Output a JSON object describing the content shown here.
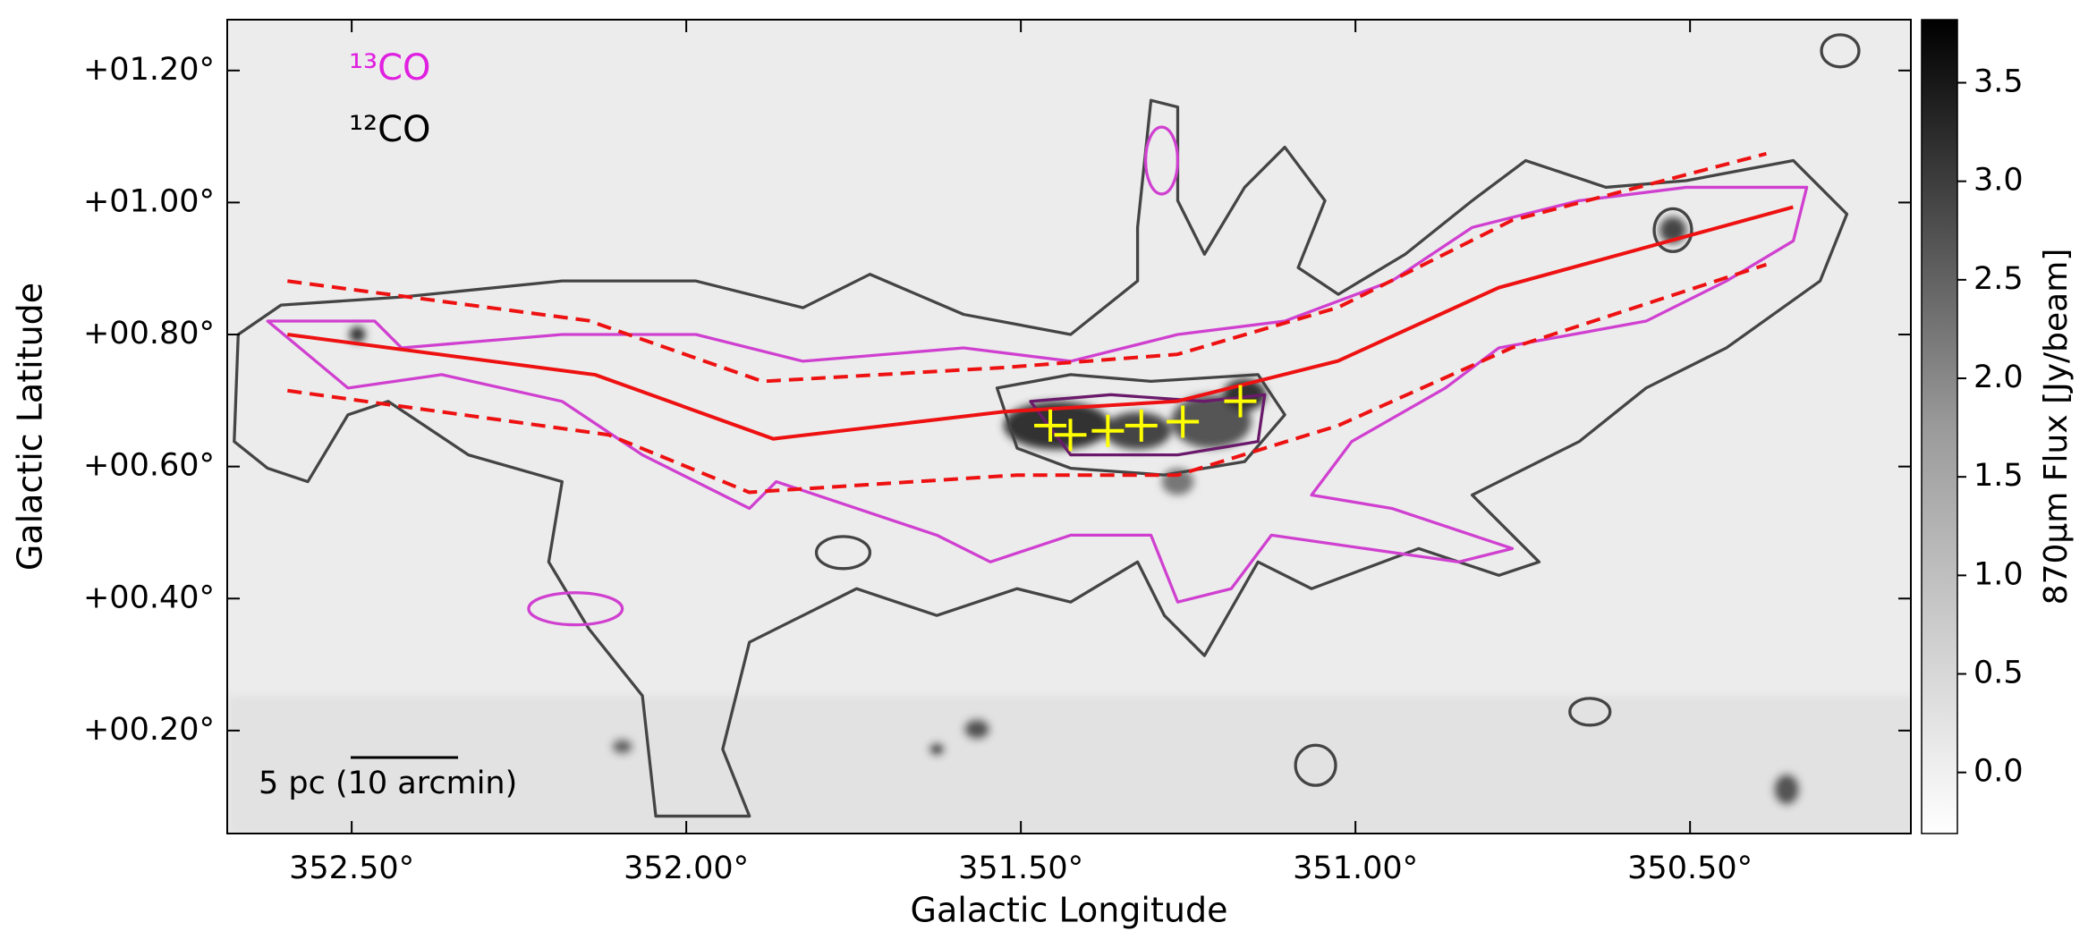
{
  "chart_data": {
    "type": "image",
    "xlabel": "Galactic Longitude",
    "ylabel": "Galactic Latitude",
    "xlim": [
      352.686,
      350.17
    ],
    "ylim": [
      0.044,
      1.277
    ],
    "xticks": [
      {
        "value": 352.5,
        "label": "352.50°"
      },
      {
        "value": 352.0,
        "label": "352.00°"
      },
      {
        "value": 351.5,
        "label": "351.50°"
      },
      {
        "value": 351.0,
        "label": "351.00°"
      },
      {
        "value": 350.5,
        "label": "350.50°"
      }
    ],
    "yticks": [
      {
        "value": 0.2,
        "label": "+00.20°"
      },
      {
        "value": 0.4,
        "label": "+00.40°"
      },
      {
        "value": 0.6,
        "label": "+00.60°"
      },
      {
        "value": 0.8,
        "label": "+00.80°"
      },
      {
        "value": 1.0,
        "label": "+01.00°"
      },
      {
        "value": 1.2,
        "label": "+01.20°"
      }
    ],
    "colorbar": {
      "label": "870μm Flux [Jy/beam]",
      "lim": [
        -0.31,
        3.82
      ],
      "ticks": [
        {
          "value": 0.0,
          "label": "0.0"
        },
        0.5,
        {
          "value": 1.0,
          "label": "1.0"
        },
        1.5,
        {
          "value": 2.0,
          "label": "2.0"
        },
        2.5,
        {
          "value": 3.0,
          "label": "3.0"
        },
        3.5
      ]
    },
    "contours": [
      {
        "name": "¹³CO",
        "color": "#e020e0"
      },
      {
        "name": "¹²CO",
        "color": "#000000"
      }
    ],
    "lines": [
      {
        "style": "solid",
        "color": "#ee1111",
        "x": [
          352.596,
          352.136,
          351.87,
          351.526,
          351.266,
          351.026,
          350.786,
          350.346
        ],
        "y": [
          0.8,
          0.739,
          0.642,
          0.683,
          0.699,
          0.76,
          0.871,
          0.993
        ]
      },
      {
        "style": "dashed",
        "color": "#ee1111",
        "x": [
          352.596,
          352.146,
          351.886,
          351.526,
          351.266,
          351.026,
          350.766,
          350.386
        ],
        "y": [
          0.881,
          0.821,
          0.729,
          0.75,
          0.77,
          0.841,
          0.973,
          1.074
        ]
      },
      {
        "style": "dashed",
        "color": "#ee1111",
        "x": [
          352.596,
          352.116,
          351.906,
          351.506,
          351.266,
          351.026,
          350.766,
          350.386
        ],
        "y": [
          0.715,
          0.648,
          0.561,
          0.587,
          0.587,
          0.662,
          0.78,
          0.906
        ]
      }
    ],
    "markers": {
      "color": "#ffff00",
      "x": [
        351.456,
        351.426,
        351.37,
        351.32,
        351.258,
        351.172
      ],
      "y": [
        0.662,
        0.648,
        0.654,
        0.662,
        0.668,
        0.699
      ]
    },
    "scalebar": "5 pc (10 arcmin)"
  }
}
